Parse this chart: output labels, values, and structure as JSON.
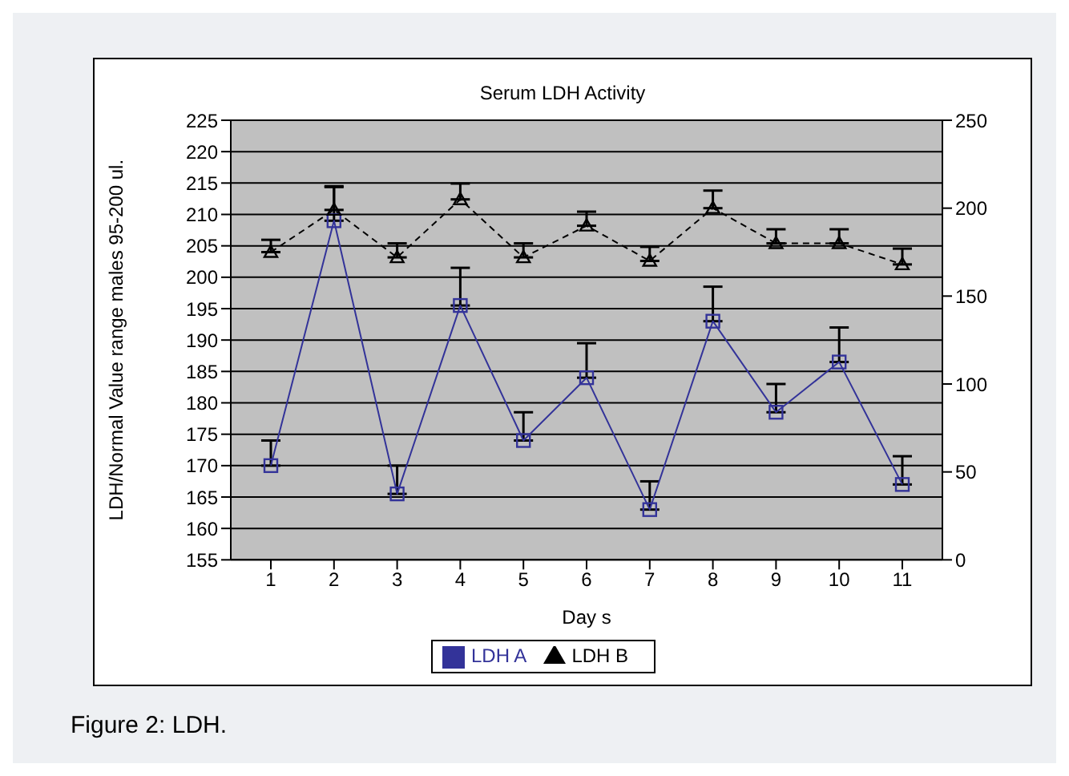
{
  "chart_data": {
    "type": "line",
    "title": "Serum LDH Activity",
    "xlabel": "Day s",
    "ylabel": "LDH/Normal Value range males 95-200 ul.",
    "categories": [
      "1",
      "2",
      "3",
      "4",
      "5",
      "6",
      "7",
      "8",
      "9",
      "10",
      "11"
    ],
    "series": [
      {
        "name": "LDH A",
        "color": "#333399",
        "marker": "square",
        "line_style": "solid",
        "values": [
          170,
          209,
          165.5,
          195.5,
          174,
          184,
          163,
          193,
          178.5,
          186.5,
          167
        ],
        "errors": [
          [
            170,
            174
          ],
          [
            209,
            214.5
          ],
          [
            165.5,
            170
          ],
          [
            195.5,
            201.5
          ],
          [
            174,
            178.5
          ],
          [
            184,
            189.5
          ],
          [
            163,
            167.5
          ],
          [
            193,
            198.5
          ],
          [
            178.5,
            183
          ],
          [
            186.5,
            192
          ],
          [
            167,
            171.5
          ]
        ]
      },
      {
        "name": "LDH B",
        "color": "#000000",
        "marker": "triangle",
        "line_style": "dashed",
        "axis": "y2",
        "values": [
          175,
          199,
          172,
          205,
          172,
          190,
          170,
          200,
          180,
          180,
          168
        ],
        "errors": [
          [
            175,
            182
          ],
          [
            199,
            212
          ],
          [
            172,
            180
          ],
          [
            205,
            214
          ],
          [
            172,
            180
          ],
          [
            190,
            198
          ],
          [
            170,
            178
          ],
          [
            200,
            210
          ],
          [
            180,
            188
          ],
          [
            180,
            188
          ],
          [
            168,
            177
          ]
        ]
      }
    ],
    "ylim": [
      155,
      225
    ],
    "yticks": [
      155,
      160,
      165,
      170,
      175,
      180,
      185,
      190,
      195,
      200,
      205,
      210,
      215,
      220,
      225
    ],
    "y2lim": [
      0,
      250
    ],
    "y2ticks": [
      0,
      50,
      100,
      150,
      200,
      250
    ],
    "grid": "y",
    "legend": "bottom",
    "annotations": [
      "Figure 2: LDH."
    ]
  }
}
